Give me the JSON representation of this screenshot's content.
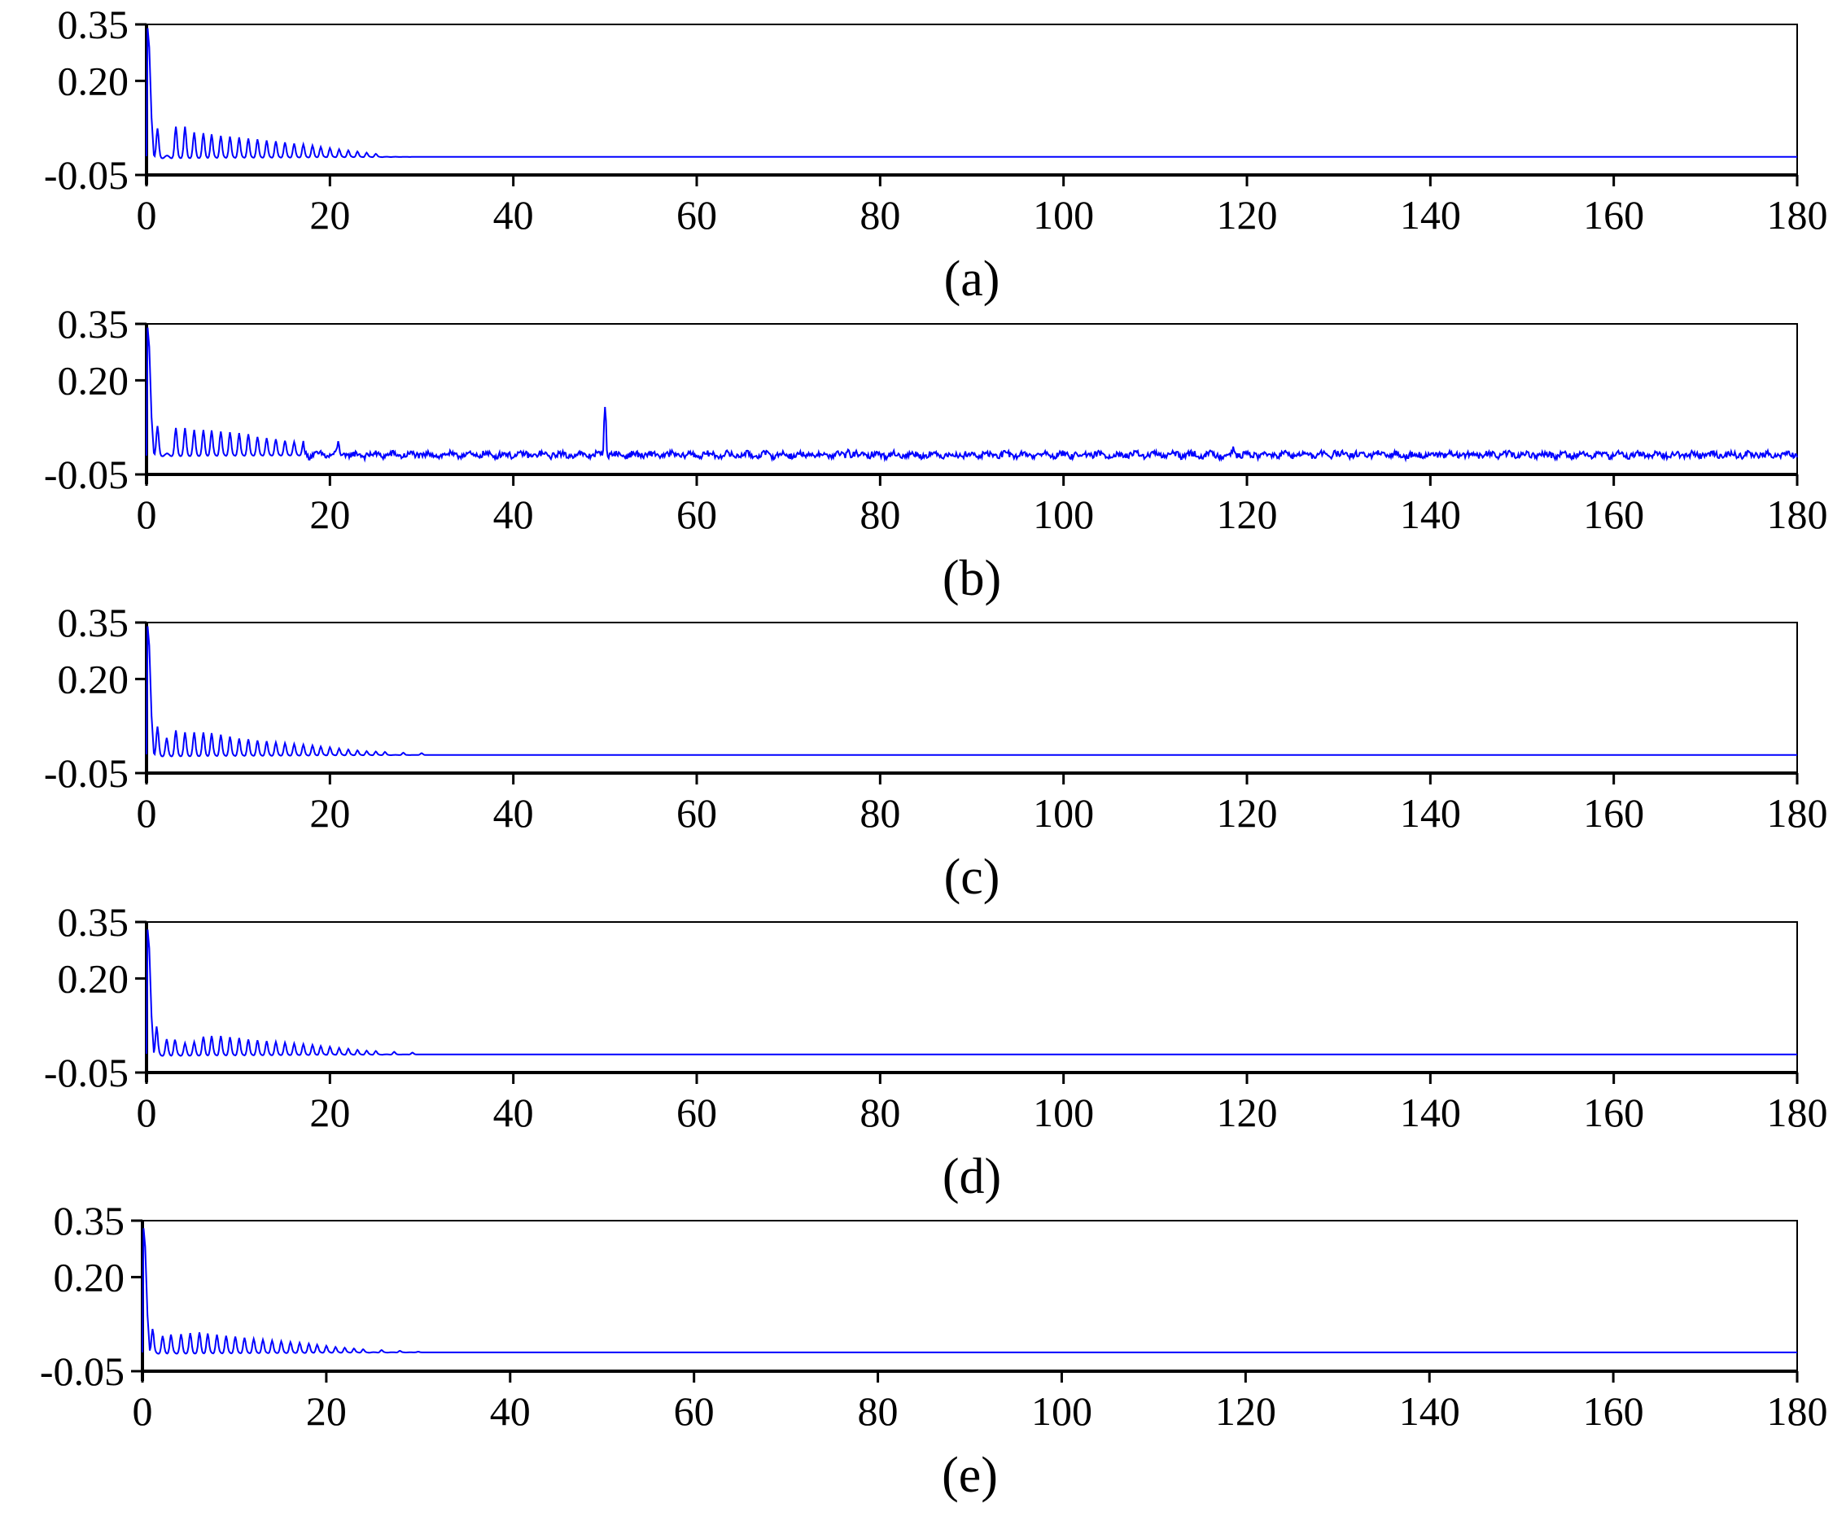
{
  "figure": {
    "line_color": "#0000ff",
    "axis_color": "#000000",
    "background": "#ffffff"
  },
  "chart_data": [
    {
      "type": "line",
      "panel_label": "(a)",
      "xlim": [
        0,
        180
      ],
      "ylim": [
        -0.05,
        0.35
      ],
      "xticks": [
        "0",
        "20",
        "40",
        "60",
        "80",
        "100",
        "120",
        "140",
        "160",
        "180"
      ],
      "yticks": [
        "0.35",
        "0.20",
        "-0.05"
      ],
      "baseline": -0.002,
      "peak": 0.34,
      "ripple_x": [
        1.2,
        3.2,
        4.2,
        5.2,
        6.2,
        7.1,
        8.1,
        9.1,
        10.1,
        11.1,
        12.1,
        13.1,
        14.1,
        15.1,
        16.1,
        17.1,
        18.1,
        19.0,
        20.0,
        21.0,
        22.0,
        23.0,
        24.0,
        25.0
      ],
      "ripple_y": [
        0.07,
        0.075,
        0.075,
        0.06,
        0.058,
        0.056,
        0.052,
        0.05,
        0.048,
        0.045,
        0.043,
        0.04,
        0.038,
        0.035,
        0.032,
        0.03,
        0.027,
        0.024,
        0.021,
        0.018,
        0.015,
        0.012,
        0.009,
        0.006
      ],
      "spikes": []
    },
    {
      "type": "line",
      "panel_label": "(b)",
      "xlim": [
        0,
        180
      ],
      "ylim": [
        -0.05,
        0.35
      ],
      "xticks": [
        "0",
        "20",
        "40",
        "60",
        "80",
        "100",
        "120",
        "140",
        "160",
        "180"
      ],
      "yticks": [
        "0.35",
        "0.20",
        "-0.05"
      ],
      "baseline": 0.002,
      "peak": 0.34,
      "ripple_x": [
        1.2,
        3.2,
        4.2,
        5.2,
        6.2,
        7.1,
        8.1,
        9.1,
        10.1,
        11.1,
        12.1,
        13.1,
        14.1,
        15.1,
        16.1,
        17.1,
        20.9
      ],
      "ripple_y": [
        0.075,
        0.07,
        0.07,
        0.065,
        0.065,
        0.065,
        0.062,
        0.06,
        0.058,
        0.055,
        0.048,
        0.045,
        0.042,
        0.038,
        0.035,
        0.032,
        0.03
      ],
      "noise_amplitude": 0.008,
      "spikes": [
        {
          "x": 50.0,
          "y": 0.14
        },
        {
          "x": 118.5,
          "y": 0.02
        },
        {
          "x": 129.5,
          "y": 0.018
        },
        {
          "x": 76.5,
          "y": 0.017
        }
      ]
    },
    {
      "type": "line",
      "panel_label": "(c)",
      "xlim": [
        0,
        180
      ],
      "ylim": [
        -0.05,
        0.35
      ],
      "xticks": [
        "0",
        "20",
        "40",
        "60",
        "80",
        "100",
        "120",
        "140",
        "160",
        "180"
      ],
      "yticks": [
        "0.35",
        "0.20",
        "-0.05"
      ],
      "baseline": -0.002,
      "peak": 0.34,
      "ripple_x": [
        1.2,
        2.2,
        3.2,
        4.2,
        5.2,
        6.2,
        7.1,
        8.1,
        9.1,
        10.1,
        11.1,
        12.1,
        13.1,
        14.1,
        15.1,
        16.1,
        17.1,
        18.1,
        19.0,
        20.0,
        21.0,
        22.0,
        23.0,
        24.0,
        25.0,
        26.0,
        28.0,
        30.0
      ],
      "ripple_y": [
        0.07,
        0.04,
        0.06,
        0.055,
        0.055,
        0.055,
        0.054,
        0.05,
        0.045,
        0.04,
        0.038,
        0.035,
        0.033,
        0.03,
        0.028,
        0.026,
        0.024,
        0.022,
        0.02,
        0.018,
        0.015,
        0.012,
        0.01,
        0.008,
        0.007,
        0.006,
        0.004,
        0.003
      ],
      "spikes": []
    },
    {
      "type": "line",
      "panel_label": "(d)",
      "xlim": [
        0,
        180
      ],
      "ylim": [
        -0.05,
        0.35
      ],
      "xticks": [
        "0",
        "20",
        "40",
        "60",
        "80",
        "100",
        "120",
        "140",
        "160",
        "180"
      ],
      "yticks": [
        "0.35",
        "0.20",
        "-0.05"
      ],
      "baseline": -0.002,
      "peak": 0.33,
      "ripple_x": [
        1.1,
        2.2,
        3.1,
        4.2,
        5.2,
        6.2,
        7.1,
        8.1,
        9.1,
        10.1,
        11.1,
        12.1,
        13.1,
        14.1,
        15.1,
        16.1,
        17.1,
        18.1,
        19.0,
        20.0,
        21.0,
        22.0,
        23.0,
        24.0,
        25.0,
        27.0,
        29.0
      ],
      "ripple_y": [
        0.07,
        0.035,
        0.035,
        0.025,
        0.028,
        0.042,
        0.045,
        0.045,
        0.042,
        0.04,
        0.036,
        0.034,
        0.032,
        0.03,
        0.028,
        0.026,
        0.024,
        0.022,
        0.02,
        0.018,
        0.015,
        0.013,
        0.01,
        0.008,
        0.007,
        0.005,
        0.003
      ],
      "spikes": []
    },
    {
      "type": "line",
      "panel_label": "(e)",
      "xlim": [
        0,
        180
      ],
      "ylim": [
        -0.05,
        0.35
      ],
      "xticks": [
        "0",
        "20",
        "40",
        "60",
        "80",
        "100",
        "120",
        "140",
        "160",
        "180"
      ],
      "yticks": [
        "0.35",
        "0.20",
        "-0.05"
      ],
      "baseline": 0.0,
      "peak": 0.33,
      "ripple_x": [
        1.1,
        2.2,
        3.1,
        4.2,
        5.2,
        6.2,
        7.1,
        8.1,
        9.1,
        10.1,
        11.1,
        12.1,
        13.1,
        14.1,
        15.1,
        16.1,
        17.1,
        18.1,
        19.0,
        20.0,
        21.0,
        22.0,
        23.0,
        24.0,
        26.0,
        28.0,
        30.0
      ],
      "ripple_y": [
        0.06,
        0.04,
        0.045,
        0.045,
        0.048,
        0.05,
        0.048,
        0.045,
        0.042,
        0.04,
        0.037,
        0.034,
        0.032,
        0.03,
        0.028,
        0.026,
        0.024,
        0.022,
        0.02,
        0.017,
        0.014,
        0.012,
        0.01,
        0.008,
        0.006,
        0.004,
        0.002
      ],
      "spikes": []
    }
  ]
}
